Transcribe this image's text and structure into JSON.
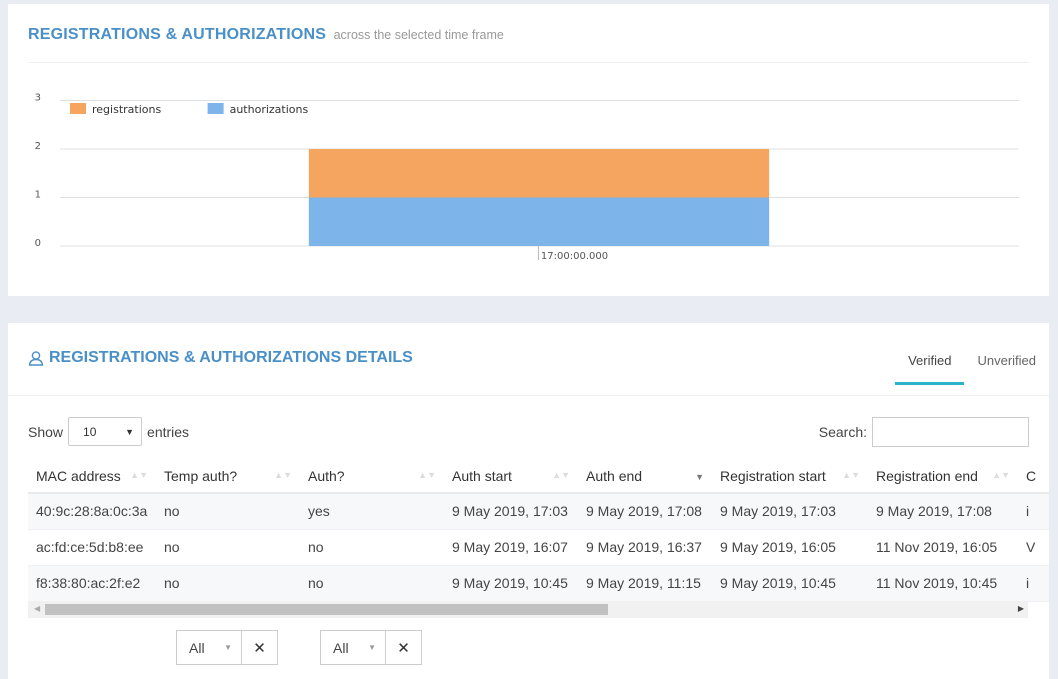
{
  "chart_panel": {
    "title": "REGISTRATIONS & AUTHORIZATIONS",
    "subtitle": "across the selected time frame"
  },
  "chart_data": {
    "type": "bar",
    "stacked": true,
    "categories": [
      "17:00:00.000"
    ],
    "series": [
      {
        "name": "registrations",
        "values": [
          1
        ],
        "color": "#f5a55f"
      },
      {
        "name": "authorizations",
        "values": [
          1
        ],
        "color": "#7db4ea"
      }
    ],
    "yticks": [
      "0",
      "1",
      "2",
      "3"
    ],
    "ylim": [
      0,
      3
    ],
    "grid": true,
    "legend_position": "top-left"
  },
  "details": {
    "title": "REGISTRATIONS & AUTHORIZATIONS DETAILS",
    "icon": "user-icon",
    "tabs": [
      {
        "label": "Verified",
        "active": true
      },
      {
        "label": "Unverified",
        "active": false
      }
    ],
    "show_label": "Show",
    "entries_value": "10",
    "entries_label": "entries",
    "search_label": "Search:",
    "search_value": "",
    "columns": [
      "MAC address",
      "Temp auth?",
      "Auth?",
      "Auth start",
      "Auth end",
      "Registration start",
      "Registration end",
      "C"
    ],
    "rows": [
      [
        "40:9c:28:8a:0c:3a",
        "no",
        "yes",
        "9 May 2019, 17:03",
        "9 May 2019, 17:08",
        "9 May 2019, 17:03",
        "9 May 2019, 17:08",
        "i"
      ],
      [
        "ac:fd:ce:5d:b8:ee",
        "no",
        "no",
        "9 May 2019, 16:07",
        "9 May 2019, 16:37",
        "9 May 2019, 16:05",
        "11 Nov 2019, 16:05",
        "V"
      ],
      [
        "f8:38:80:ac:2f:e2",
        "no",
        "no",
        "9 May 2019, 10:45",
        "9 May 2019, 11:15",
        "9 May 2019, 10:45",
        "11 Nov 2019, 10:45",
        "i"
      ]
    ],
    "filters": [
      {
        "value": "All",
        "clear": "✕"
      },
      {
        "value": "All",
        "clear": "✕"
      }
    ]
  }
}
